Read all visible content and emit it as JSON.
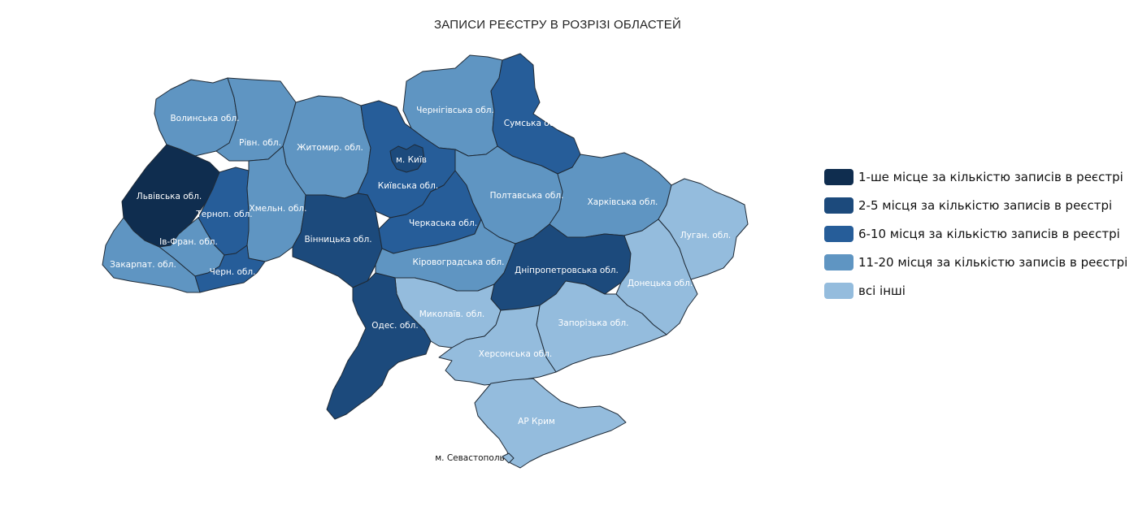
{
  "title": "ЗАПИСИ РЕЄСТРУ В РОЗРІЗІ ОБЛАСТЕЙ",
  "colors": {
    "rank1": "#0f2d4f",
    "rank2_5": "#1c4a7c",
    "rank6_10": "#265d99",
    "rank11_20": "#5f95c2",
    "others": "#94bcdd"
  },
  "legend": [
    {
      "label": "1-ше місце за кількістю записів в реєстрі",
      "color": "#0f2d4f"
    },
    {
      "label": "2-5 місця за кількістю записів в реєстрі",
      "color": "#1c4a7c"
    },
    {
      "label": "6-10 місця за кількістю записів в реєстрі",
      "color": "#265d99"
    },
    {
      "label": "11-20 місця за кількістю записів в реєстрі",
      "color": "#5f95c2"
    },
    {
      "label": "всі інші",
      "color": "#94bcdd"
    }
  ],
  "regions": {
    "volyn": {
      "label": "Волинська обл.",
      "category": "rank11_20"
    },
    "rivne": {
      "label": "Рівн. обл.",
      "category": "rank11_20"
    },
    "zhytomyr": {
      "label": "Житомир. обл.",
      "category": "rank11_20"
    },
    "chernihiv": {
      "label": "Чернігівська обл.",
      "category": "rank11_20"
    },
    "sumy": {
      "label": "Сумська обл.",
      "category": "rank6_10"
    },
    "kyiv_city": {
      "label": "м. Київ",
      "category": "rank2_5"
    },
    "kyiv_obl": {
      "label": "Київська обл.",
      "category": "rank6_10"
    },
    "lviv": {
      "label": "Львівська обл.",
      "category": "rank1"
    },
    "ternopil": {
      "label": "Терноп. обл.",
      "category": "rank6_10"
    },
    "khmelnytskyi": {
      "label": "Хмельн. обл.",
      "category": "rank11_20"
    },
    "vinnytsia": {
      "label": "Вінницька обл.",
      "category": "rank2_5"
    },
    "cherkasy": {
      "label": "Черкаська обл.",
      "category": "rank6_10"
    },
    "poltava": {
      "label": "Полтавська обл.",
      "category": "rank11_20"
    },
    "kharkiv": {
      "label": "Харківська обл.",
      "category": "rank11_20"
    },
    "luhansk": {
      "label": "Луган. обл.",
      "category": "others"
    },
    "ivano_frankivsk": {
      "label": "Ів-Фран. обл.",
      "category": "rank11_20"
    },
    "zakarpattia": {
      "label": "Закарпат. обл.",
      "category": "rank11_20"
    },
    "chernivtsi": {
      "label": "Черн. обл.",
      "category": "rank6_10"
    },
    "kirovohrad": {
      "label": "Кіровоградська обл.",
      "category": "rank11_20"
    },
    "dnipropetrovsk": {
      "label": "Дніпропетровська обл.",
      "category": "rank2_5"
    },
    "donetsk": {
      "label": "Донецька обл.",
      "category": "others"
    },
    "mykolaiv": {
      "label": "Миколаїв. обл.",
      "category": "others"
    },
    "odesa": {
      "label": "Одес. обл.",
      "category": "rank2_5"
    },
    "zaporizhzhia": {
      "label": "Запорізька обл.",
      "category": "others"
    },
    "kherson": {
      "label": "Херсонська обл.",
      "category": "others"
    },
    "crimea": {
      "label": "АР Крим",
      "category": "others"
    },
    "sevastopol": {
      "label": "м. Севастополь",
      "category": "others"
    }
  }
}
